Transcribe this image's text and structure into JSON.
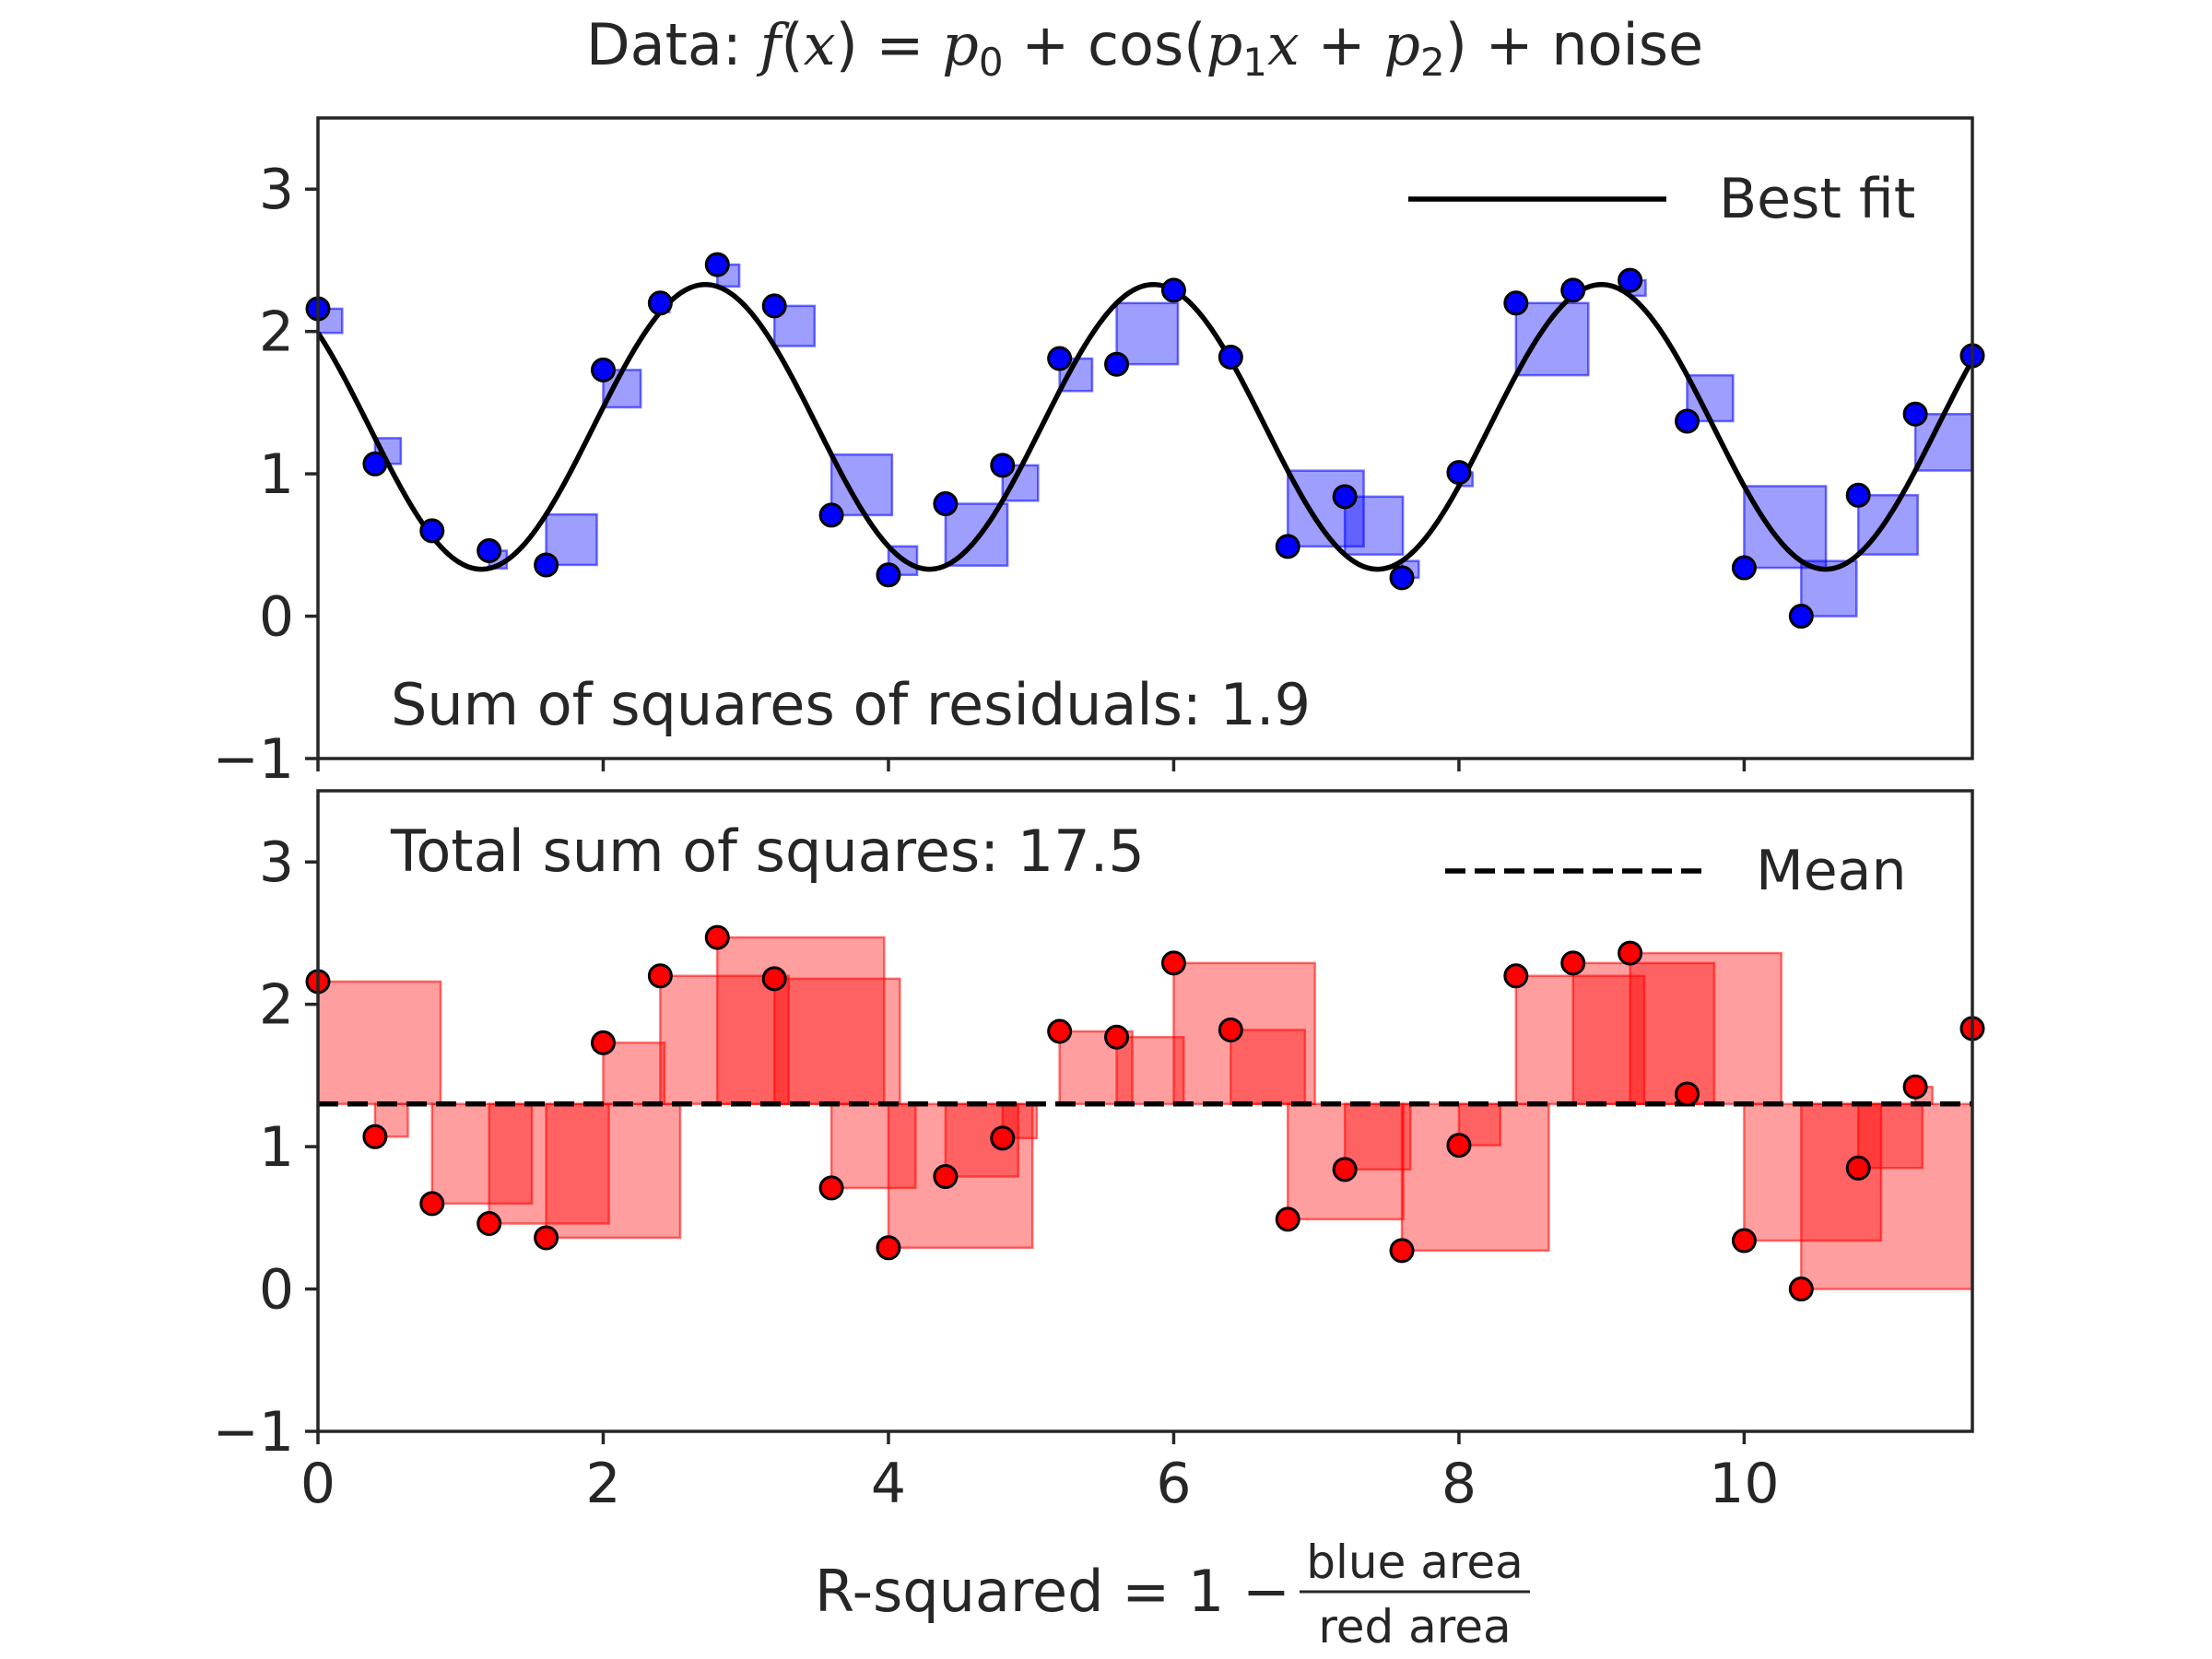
{
  "figure": {
    "title_prefix": "Data: ",
    "title_suffix": " noise",
    "xlabel_main": "R-squared = 1 − ",
    "xlabel_num": "blue area",
    "xlabel_den": "red area"
  },
  "chart_data": [
    {
      "type": "scatter",
      "panel": "top",
      "annotation": "Sum of squares of residuals: 1.9",
      "legend": {
        "label": "Best fit",
        "placement": "top-right"
      },
      "xlim": [
        0,
        11.6
      ],
      "ylim": [
        -1,
        3.5
      ],
      "xticks": [
        0,
        2,
        4,
        6,
        8,
        10
      ],
      "yticks": [
        -1,
        0,
        1,
        2,
        3
      ],
      "ytick_labels": [
        "−1",
        "0",
        "1",
        "2",
        "3"
      ],
      "fit": {
        "p0": 1.33,
        "p1": 2.0,
        "p2": 0.85,
        "color": "#000000"
      },
      "point_color": "#0000ff",
      "square_color": "#0000ff",
      "x": [
        0,
        0.4,
        0.8,
        1.2,
        1.6,
        2.0,
        2.4,
        2.8,
        3.2,
        3.6,
        4.0,
        4.4,
        4.8,
        5.2,
        5.6,
        6.0,
        6.4,
        6.8,
        7.2,
        7.6,
        8.0,
        8.4,
        8.8,
        9.2,
        9.6,
        10.0,
        10.4,
        10.8,
        11.2,
        11.6
      ],
      "y": [
        2.16,
        1.07,
        0.6,
        0.46,
        0.36,
        1.73,
        2.2,
        2.47,
        2.18,
        0.71,
        0.29,
        0.79,
        1.06,
        1.81,
        1.77,
        2.29,
        1.82,
        0.49,
        0.84,
        0.27,
        1.01,
        2.2,
        2.29,
        2.36,
        1.37,
        0.34,
        0.0,
        0.85,
        1.42,
        1.83
      ]
    },
    {
      "type": "scatter",
      "panel": "bottom",
      "annotation": "Total sum of squares: 17.5",
      "legend": {
        "label": "Mean",
        "placement": "top-right"
      },
      "xlim": [
        0,
        11.6
      ],
      "ylim": [
        -1,
        3.5
      ],
      "xticks": [
        0,
        2,
        4,
        6,
        8,
        10
      ],
      "xtick_labels": [
        "0",
        "2",
        "4",
        "6",
        "8",
        "10"
      ],
      "yticks": [
        -1,
        0,
        1,
        2,
        3
      ],
      "ytick_labels": [
        "−1",
        "0",
        "1",
        "2",
        "3"
      ],
      "mean": 1.3,
      "point_color": "#ff0000",
      "square_color": "#ff0000",
      "x": [
        0,
        0.4,
        0.8,
        1.2,
        1.6,
        2.0,
        2.4,
        2.8,
        3.2,
        3.6,
        4.0,
        4.4,
        4.8,
        5.2,
        5.6,
        6.0,
        6.4,
        6.8,
        7.2,
        7.6,
        8.0,
        8.4,
        8.8,
        9.2,
        9.6,
        10.0,
        10.4,
        10.8,
        11.2,
        11.6
      ],
      "y": [
        2.16,
        1.07,
        0.6,
        0.46,
        0.36,
        1.73,
        2.2,
        2.47,
        2.18,
        0.71,
        0.29,
        0.79,
        1.06,
        1.81,
        1.77,
        2.29,
        1.82,
        0.49,
        0.84,
        0.27,
        1.01,
        2.2,
        2.29,
        2.36,
        1.37,
        0.34,
        0.0,
        0.85,
        1.42,
        1.83
      ]
    }
  ]
}
